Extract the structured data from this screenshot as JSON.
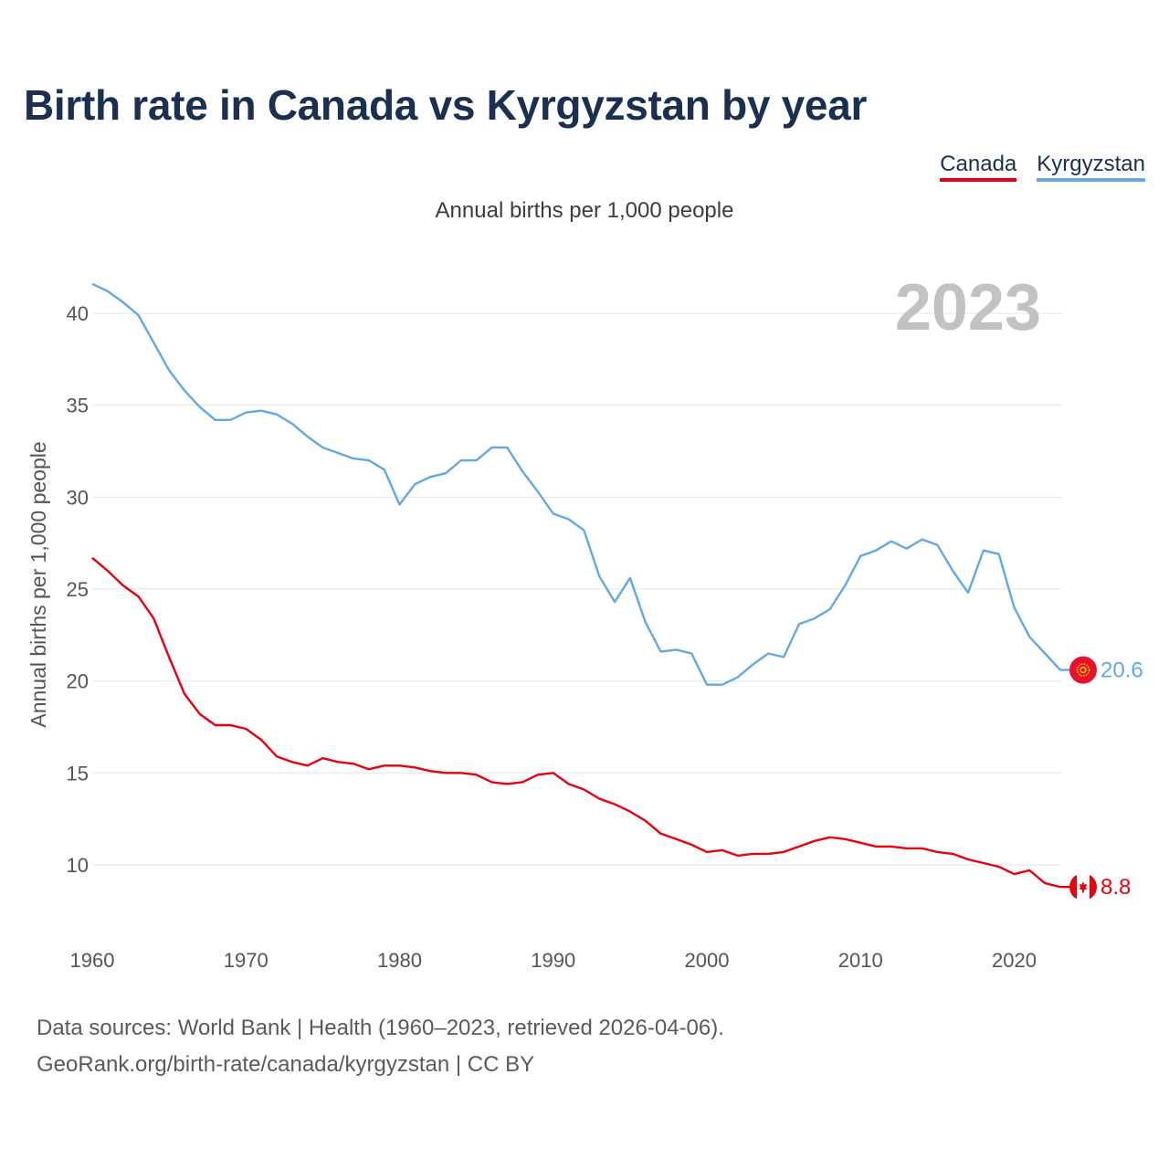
{
  "title": "Birth rate in Canada vs Kyrgyzstan by year",
  "subtitle": "Annual births per 1,000 people",
  "legend": [
    {
      "name": "Canada",
      "color": "#e8000d"
    },
    {
      "name": "Kyrgyzstan",
      "color": "#62a8e5"
    }
  ],
  "footer": {
    "source": "Data sources: World Bank | Health (1960–2023, retrieved 2026-04-06).",
    "link": "GeoRank.org/birth-rate/canada/kyrgyzstan | CC BY"
  },
  "chart_data": {
    "type": "line",
    "title": "Birth rate in Canada vs Kyrgyzstan by year",
    "ylabel": "Annual births per 1,000 people",
    "xlabel": "",
    "year_label": "2023",
    "xlim": [
      1960,
      2023
    ],
    "ylim": [
      7,
      43
    ],
    "xticks": [
      1960,
      1970,
      1980,
      1990,
      2000,
      2010,
      2020
    ],
    "yticks": [
      10,
      15,
      20,
      25,
      30,
      35,
      40
    ],
    "grid": true,
    "x": [
      1960,
      1961,
      1962,
      1963,
      1964,
      1965,
      1966,
      1967,
      1968,
      1969,
      1970,
      1971,
      1972,
      1973,
      1974,
      1975,
      1976,
      1977,
      1978,
      1979,
      1980,
      1981,
      1982,
      1983,
      1984,
      1985,
      1986,
      1987,
      1988,
      1989,
      1990,
      1991,
      1992,
      1993,
      1994,
      1995,
      1996,
      1997,
      1998,
      1999,
      2000,
      2001,
      2002,
      2003,
      2004,
      2005,
      2006,
      2007,
      2008,
      2009,
      2010,
      2011,
      2012,
      2013,
      2014,
      2015,
      2016,
      2017,
      2018,
      2019,
      2020,
      2021,
      2022,
      2023
    ],
    "series": [
      {
        "name": "Canada",
        "color": "#e8000d",
        "end_label": "8.8",
        "flag": "canada-flag-icon",
        "values": [
          26.7,
          26.0,
          25.2,
          24.6,
          23.4,
          21.3,
          19.3,
          18.2,
          17.6,
          17.6,
          17.4,
          16.8,
          15.9,
          15.6,
          15.4,
          15.8,
          15.6,
          15.5,
          15.2,
          15.4,
          15.4,
          15.3,
          15.1,
          15.0,
          15.0,
          14.9,
          14.5,
          14.4,
          14.5,
          14.9,
          15.0,
          14.4,
          14.1,
          13.6,
          13.3,
          12.9,
          12.4,
          11.7,
          11.4,
          11.1,
          10.7,
          10.8,
          10.5,
          10.6,
          10.6,
          10.7,
          11.0,
          11.3,
          11.5,
          11.4,
          11.2,
          11.0,
          11.0,
          10.9,
          10.9,
          10.7,
          10.6,
          10.3,
          10.1,
          9.9,
          9.5,
          9.7,
          9.0,
          8.8
        ]
      },
      {
        "name": "Kyrgyzstan",
        "color": "#62a8e5",
        "end_label": "20.6",
        "flag": "kyrgyzstan-flag-icon",
        "values": [
          41.6,
          41.2,
          40.6,
          39.9,
          38.4,
          36.9,
          35.8,
          34.9,
          34.2,
          34.2,
          34.6,
          34.7,
          34.5,
          34.0,
          33.3,
          32.7,
          32.4,
          32.1,
          32.0,
          31.5,
          29.6,
          30.7,
          31.1,
          31.3,
          32.0,
          32.0,
          32.7,
          32.7,
          31.4,
          30.3,
          29.1,
          28.8,
          28.2,
          25.7,
          24.3,
          25.6,
          23.2,
          21.6,
          21.7,
          21.5,
          19.8,
          19.8,
          20.2,
          20.9,
          21.5,
          21.3,
          23.1,
          23.4,
          23.9,
          25.2,
          26.8,
          27.1,
          27.6,
          27.2,
          27.7,
          27.4,
          26.0,
          24.8,
          27.1,
          26.9,
          24.0,
          22.4,
          21.5,
          20.6
        ]
      }
    ]
  }
}
